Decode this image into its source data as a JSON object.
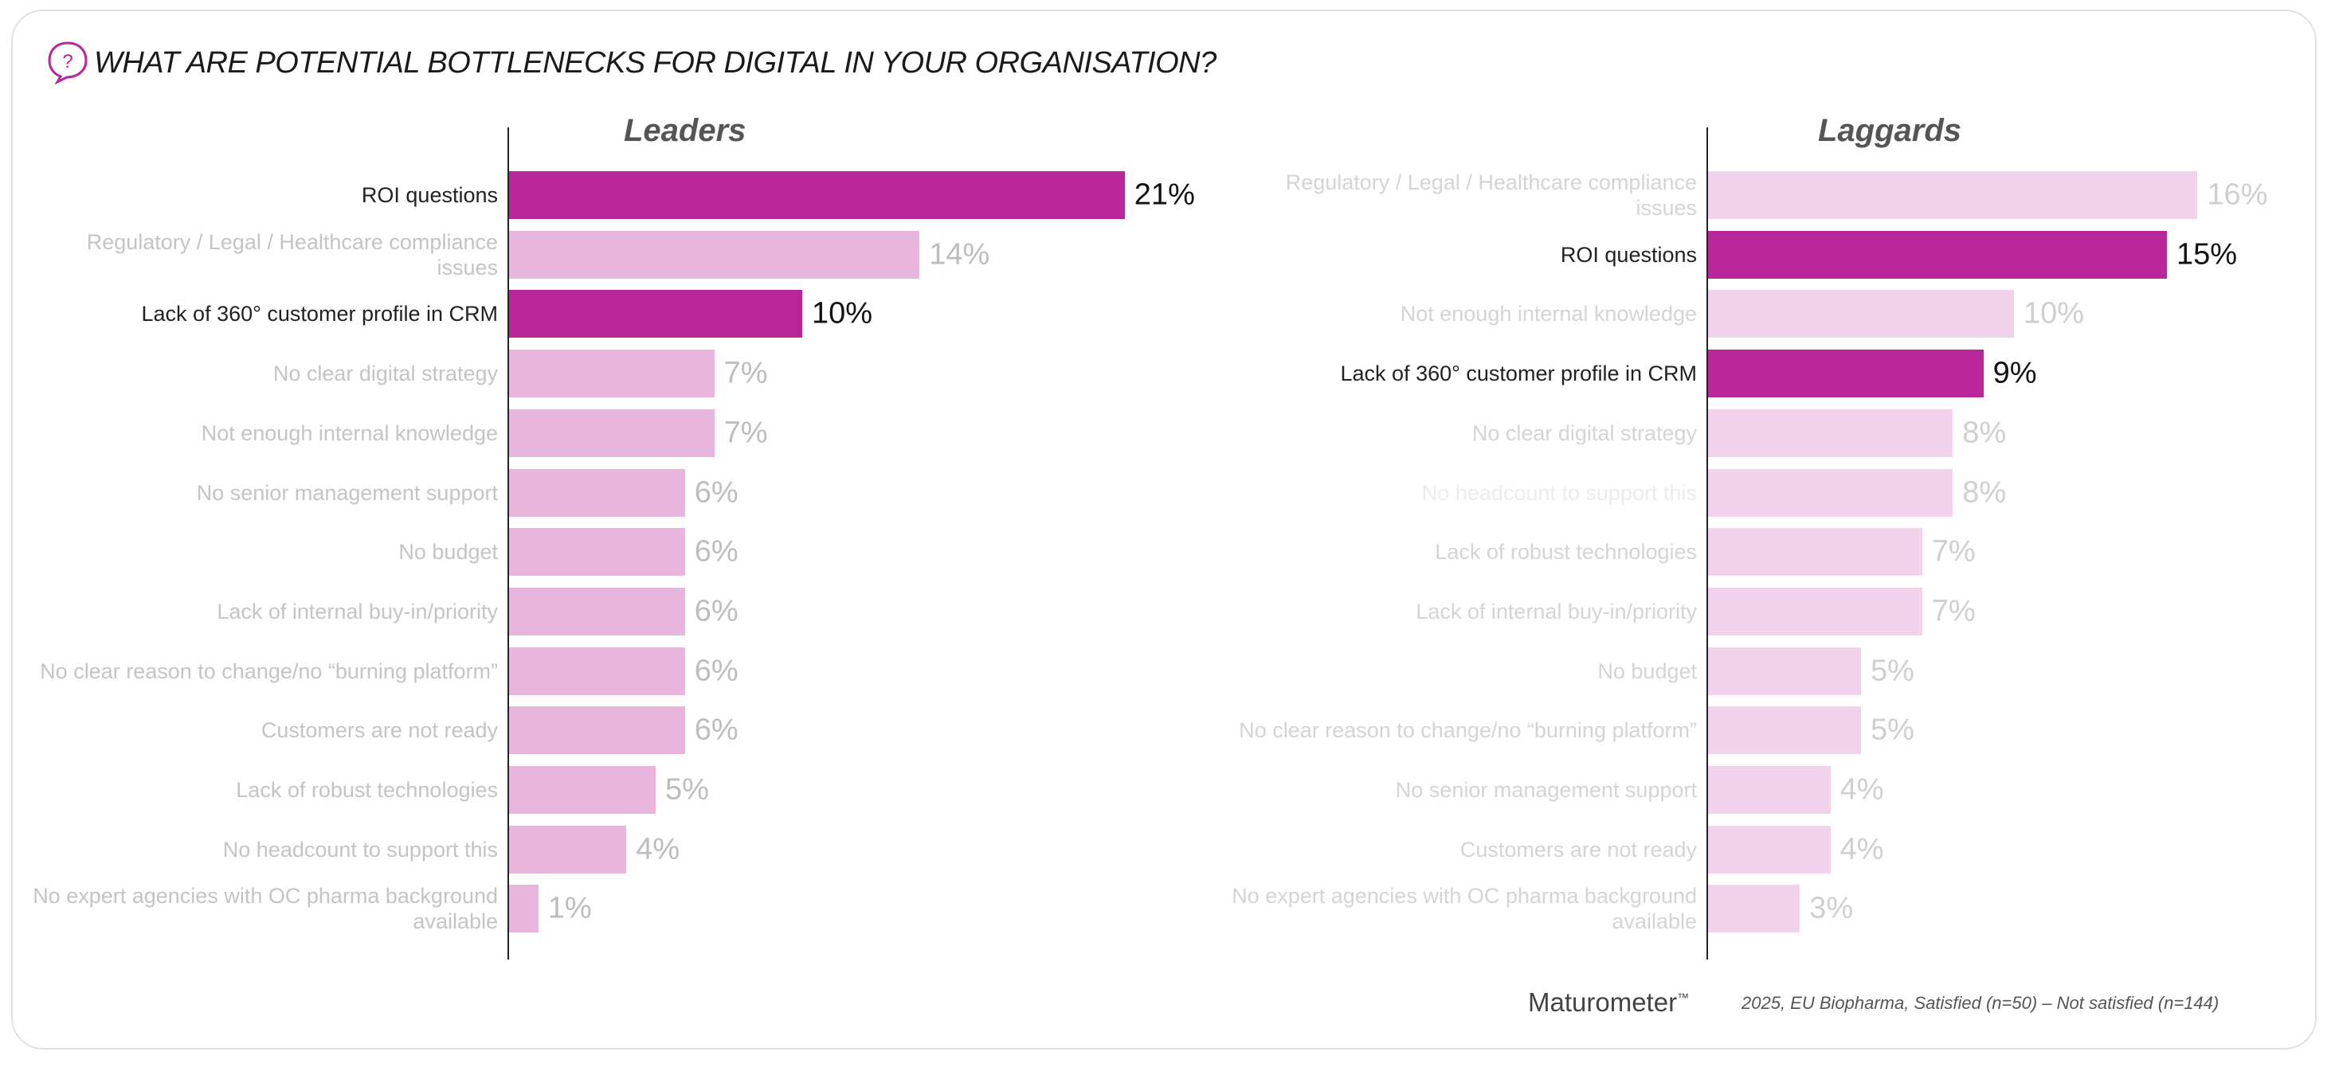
{
  "title": "WHAT ARE POTENTIAL BOTTLENECKS FOR DIGITAL IN YOUR ORGANISATION?",
  "footer": {
    "brand": "Maturometer",
    "trademark": "™",
    "note": "2025, EU Biopharma, Satisfied (n=50) – Not satisfied (n=144)"
  },
  "colors": {
    "highlight": "#b8269a",
    "leaders_bar": "#e8b6dd",
    "laggards_bar": "#f3d3eb"
  },
  "chart_data": [
    {
      "type": "bar",
      "orientation": "horizontal",
      "title": "Leaders",
      "categories": [
        "ROI questions",
        "Regulatory / Legal / Healthcare compliance issues",
        "Lack of 360° customer profile in CRM",
        "No clear digital strategy",
        "Not enough internal knowledge",
        "No senior management support",
        "No budget",
        "Lack of internal buy-in/priority",
        "No clear reason to change/no “burning platform”",
        "Customers are not ready",
        "Lack of robust technologies",
        "No headcount to support this",
        "No expert agencies with OC pharma background available"
      ],
      "values": [
        21,
        14,
        10,
        7,
        7,
        6,
        6,
        6,
        6,
        6,
        5,
        4,
        1
      ],
      "labels": [
        "21%",
        "14%",
        "10%",
        "7%",
        "7%",
        "6%",
        "6%",
        "6%",
        "6%",
        "6%",
        "5%",
        "4%",
        "1%"
      ],
      "highlighted": [
        true,
        false,
        true,
        false,
        false,
        false,
        false,
        false,
        false,
        false,
        false,
        false,
        false
      ],
      "unit": "%"
    },
    {
      "type": "bar",
      "orientation": "horizontal",
      "title": "Laggards",
      "categories": [
        "Regulatory / Legal / Healthcare compliance issues",
        "ROI questions",
        "Not enough internal knowledge",
        "Lack of 360° customer profile in CRM",
        "No clear digital strategy",
        "No headcount to support this",
        "Lack of robust technologies",
        "Lack of internal buy-in/priority",
        "No budget",
        "No clear reason to change/no “burning platform”",
        "No senior management support",
        "Customers are not ready",
        "No expert agencies with OC pharma background available"
      ],
      "values": [
        16,
        15,
        10,
        9,
        8,
        8,
        7,
        7,
        5,
        5,
        4,
        4,
        3
      ],
      "labels": [
        "16%",
        "15%",
        "10%",
        "9%",
        "8%",
        "8%",
        "7%",
        "7%",
        "5%",
        "5%",
        "4%",
        "4%",
        "3%"
      ],
      "highlighted": [
        false,
        true,
        false,
        true,
        false,
        false,
        false,
        false,
        false,
        false,
        false,
        false,
        false
      ],
      "unit": "%"
    }
  ]
}
